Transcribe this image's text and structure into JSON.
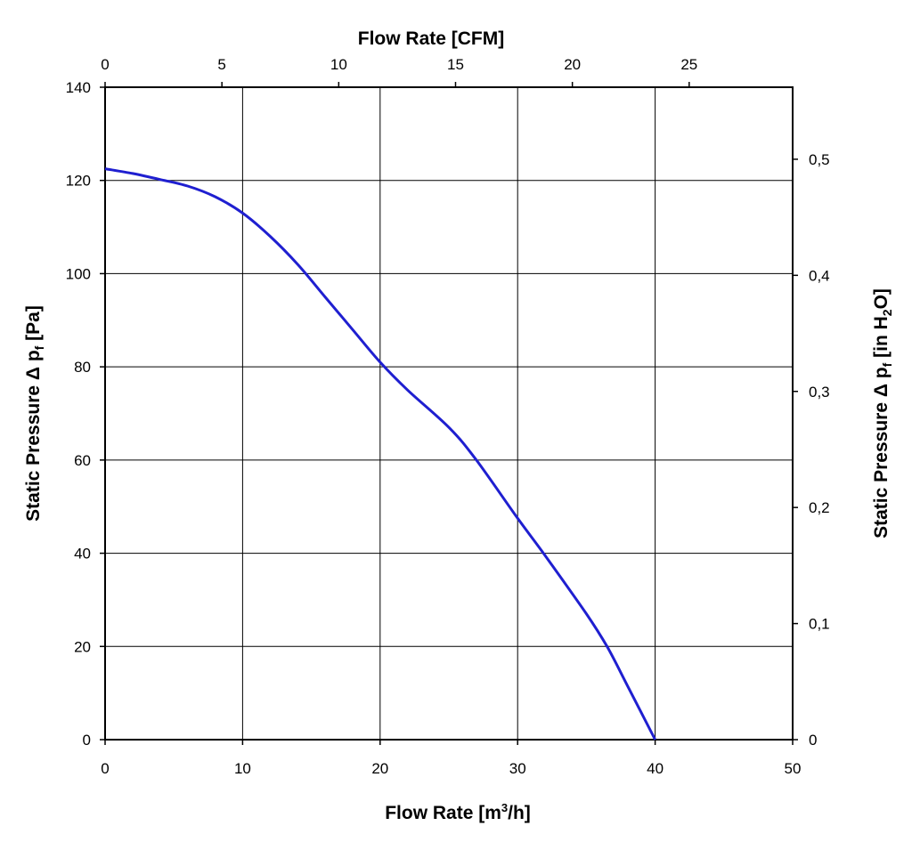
{
  "chart_data": {
    "type": "line",
    "x_axis_bottom": {
      "label_main": "Flow Rate [m",
      "label_sup": "3",
      "label_end": "/h]",
      "range": [
        0,
        50
      ],
      "ticks": [
        0,
        10,
        20,
        30,
        40,
        50
      ],
      "tick_labels": [
        "0",
        "10",
        "20",
        "30",
        "40",
        "50"
      ]
    },
    "x_axis_top": {
      "label": "Flow Rate [CFM]",
      "ticks": [
        0,
        5,
        10,
        15,
        20,
        25
      ],
      "tick_labels": [
        "0",
        "5",
        "10",
        "15",
        "20",
        "25"
      ],
      "m3h_per_cfm": 1.699
    },
    "y_axis_left": {
      "label_main": "Static Pressure Δ p",
      "label_sub": "f",
      "label_end": " [Pa]",
      "range": [
        0,
        140
      ],
      "ticks": [
        0,
        20,
        40,
        60,
        80,
        100,
        120,
        140
      ],
      "tick_labels": [
        "0",
        "20",
        "40",
        "60",
        "80",
        "100",
        "120",
        "140"
      ]
    },
    "y_axis_right": {
      "label_main": "Static Pressure Δ p",
      "label_sub": "f",
      "label_mid": " [in H",
      "label_sub2": "2",
      "label_end": "O]",
      "ticks": [
        0,
        0.1,
        0.2,
        0.3,
        0.4,
        0.5
      ],
      "tick_labels": [
        "0",
        "0,1",
        "0,2",
        "0,3",
        "0,4",
        "0,5"
      ],
      "pa_per_inh2o": 249.09
    },
    "grid": true,
    "series": [
      {
        "color": "#1f1fd0",
        "x": [
          0,
          2,
          4,
          6,
          8,
          10,
          12,
          14,
          16,
          18,
          20,
          22,
          25,
          27,
          30,
          32,
          35,
          36.5,
          38,
          40
        ],
        "y": [
          122.5,
          121.5,
          120.2,
          118.8,
          116.5,
          113,
          108,
          102,
          95,
          88,
          81,
          75,
          67,
          60,
          47.5,
          39.5,
          27,
          20,
          11.5,
          0
        ]
      }
    ]
  }
}
